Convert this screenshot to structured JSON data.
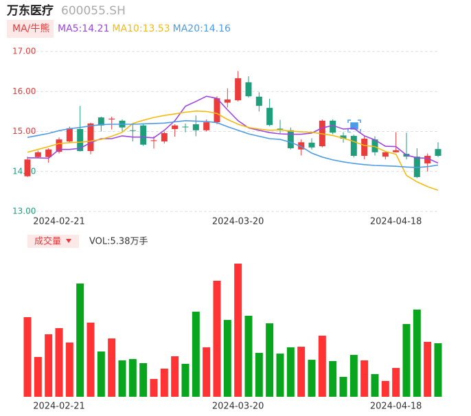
{
  "chart_data": [
    {
      "type": "candlestick",
      "title": "万东医疗",
      "subtitle": "600055.SH",
      "button": "MA/牛熊",
      "categories": [
        null,
        null,
        null,
        "2024-02-21",
        null,
        null,
        null,
        null,
        null,
        null,
        null,
        null,
        null,
        null,
        null,
        null,
        null,
        null,
        null,
        null,
        "2024-03-20",
        null,
        null,
        null,
        null,
        null,
        null,
        null,
        null,
        null,
        null,
        null,
        null,
        null,
        null,
        "2024-04-18",
        null,
        null,
        null,
        null
      ],
      "open": [
        13.88,
        14.36,
        14.36,
        14.49,
        14.75,
        15.06,
        14.51,
        15.35,
        15.3,
        15.27,
        15.03,
        15.15,
        14.76,
        14.75,
        15.06,
        15.12,
        15.18,
        15.03,
        15.23,
        15.72,
        15.78,
        16.23,
        15.87,
        15.59,
        15.07,
        15.03,
        14.55,
        14.72,
        14.63,
        15.27,
        14.9,
        14.89,
        14.39,
        14.8,
        14.37,
        14.48,
        14.44,
        14.37,
        14.2,
        14.56
      ],
      "high": [
        14.37,
        14.52,
        14.58,
        14.85,
        15.12,
        15.64,
        15.22,
        15.37,
        15.37,
        15.3,
        15.2,
        15.18,
        14.88,
        15.0,
        15.18,
        15.2,
        15.4,
        15.3,
        15.88,
        16.08,
        16.51,
        16.38,
        15.98,
        15.82,
        15.29,
        15.1,
        14.8,
        14.83,
        15.3,
        15.3,
        14.98,
        14.92,
        14.88,
        14.88,
        14.5,
        14.98,
        14.97,
        14.58,
        14.45,
        14.73
      ],
      "low": [
        13.86,
        14.33,
        14.22,
        14.45,
        14.72,
        14.5,
        14.43,
        15.0,
        15.05,
        15.0,
        14.75,
        14.64,
        14.57,
        14.7,
        14.87,
        14.98,
        14.88,
        15.0,
        15.18,
        15.6,
        15.75,
        15.85,
        15.5,
        15.13,
        14.95,
        14.55,
        14.4,
        14.55,
        14.6,
        14.93,
        14.72,
        14.35,
        14.3,
        14.4,
        14.3,
        14.47,
        14.3,
        13.83,
        14.0,
        14.36
      ],
      "close": [
        14.3,
        14.48,
        14.55,
        14.8,
        15.08,
        14.51,
        15.2,
        15.15,
        15.32,
        15.1,
        15.02,
        14.67,
        14.78,
        14.96,
        15.15,
        15.11,
        15.03,
        15.23,
        15.83,
        15.8,
        16.33,
        15.88,
        15.64,
        15.16,
        15.05,
        14.58,
        14.73,
        14.6,
        15.27,
        14.97,
        14.82,
        14.39,
        14.82,
        14.48,
        14.48,
        14.53,
        14.37,
        13.86,
        14.39,
        14.39
      ],
      "up_color": "#eb3c3c",
      "down_color": "#1f9e7c",
      "series": [
        {
          "name": "MA5:14.21",
          "color": "#9b45e4",
          "values": [
            14.34,
            14.34,
            14.33,
            14.55,
            14.55,
            14.58,
            14.72,
            14.82,
            14.82,
            14.89,
            14.86,
            14.86,
            14.84,
            15.03,
            15.27,
            15.63,
            15.75,
            15.88,
            15.83,
            15.54,
            15.27,
            15.09,
            15.03,
            14.97,
            14.94,
            14.93,
            14.93,
            14.96,
            15.09,
            15.15,
            15.06,
            15.08,
            14.89,
            14.79,
            14.63,
            14.62,
            14.41,
            14.34,
            14.33,
            14.21
          ]
        },
        {
          "name": "MA10:13.53",
          "color": "#f5ba0e",
          "values": [
            14.48,
            14.55,
            14.62,
            14.7,
            14.72,
            14.73,
            14.76,
            14.8,
            14.88,
            14.98,
            15.2,
            15.28,
            15.35,
            15.4,
            15.44,
            15.48,
            15.51,
            15.5,
            15.45,
            15.3,
            15.18,
            15.1,
            15.06,
            15.03,
            15.04,
            15.01,
            14.99,
            14.98,
            14.94,
            14.9,
            14.83,
            14.75,
            14.65,
            14.62,
            14.5,
            14.43,
            13.9,
            13.74,
            13.62,
            13.53
          ]
        },
        {
          "name": "MA20:14.16",
          "color": "#4c9be6",
          "values": [
            14.85,
            14.9,
            14.95,
            15.02,
            15.07,
            15.1,
            15.14,
            15.17,
            15.18,
            15.18,
            15.18,
            15.19,
            15.2,
            15.21,
            15.24,
            15.27,
            15.26,
            15.25,
            15.22,
            15.12,
            15.03,
            14.94,
            14.88,
            14.82,
            14.8,
            14.73,
            14.62,
            14.46,
            14.36,
            14.29,
            14.24,
            14.2,
            14.17,
            14.15,
            14.14,
            14.13,
            14.11,
            14.1,
            14.12,
            14.16
          ]
        }
      ],
      "ylim": [
        13,
        17
      ],
      "yticks": [
        {
          "value": 17,
          "label": "17.00"
        },
        {
          "value": 16,
          "label": "16.00"
        },
        {
          "value": 15,
          "label": "15.00"
        },
        {
          "value": 14,
          "label": "14.00"
        },
        {
          "value": 13,
          "label": "13.00"
        }
      ],
      "ytick_colors": [
        "#e33b3b",
        "#e33b3b",
        "#e33b3b",
        "#1f9e7c",
        "#1f9e7c"
      ],
      "grid": true
    },
    {
      "type": "bar",
      "button": "成交量",
      "label": "VOL:5.38万手",
      "categories": [
        null,
        null,
        null,
        "2024-02-21",
        null,
        null,
        null,
        null,
        null,
        null,
        null,
        null,
        null,
        null,
        null,
        null,
        null,
        null,
        null,
        null,
        "2024-03-20",
        null,
        null,
        null,
        null,
        null,
        null,
        null,
        null,
        null,
        null,
        null,
        null,
        null,
        null,
        "2024-04-18",
        null,
        null,
        null,
        null
      ],
      "values": [
        8.0,
        4.0,
        6.28,
        6.9,
        5.45,
        11.38,
        7.45,
        4.55,
        5.86,
        3.66,
        3.79,
        3.38,
        1.79,
        2.83,
        4.07,
        3.31,
        8.55,
        4.97,
        11.66,
        7.72,
        13.38,
        8.14,
        4.41,
        7.38,
        4.34,
        4.97,
        5.03,
        3.72,
        6.14,
        3.59,
        2.0,
        4.21,
        3.66,
        2.28,
        1.59,
        2.9,
        7.31,
        8.76,
        5.52,
        5.38
      ],
      "colors": [
        "#ff3333",
        "#ff3333",
        "#ff3333",
        "#ff3333",
        "#ff3333",
        "#0aa51e",
        "#ff3333",
        "#0aa51e",
        "#ff3333",
        "#0aa51e",
        "#0aa51e",
        "#0aa51e",
        "#ff3333",
        "#ff3333",
        "#ff3333",
        "#0aa51e",
        "#0aa51e",
        "#ff3333",
        "#ff3333",
        "#0aa51e",
        "#ff3333",
        "#0aa51e",
        "#0aa51e",
        "#0aa51e",
        "#0aa51e",
        "#0aa51e",
        "#ff3333",
        "#0aa51e",
        "#ff3333",
        "#0aa51e",
        "#0aa51e",
        "#0aa51e",
        "#ff3333",
        "#0aa51e",
        "#ff3333",
        "#ff3333",
        "#0aa51e",
        "#0aa51e",
        "#ff3333",
        "#0aa51e"
      ],
      "ylim": [
        0,
        14.07
      ]
    }
  ]
}
